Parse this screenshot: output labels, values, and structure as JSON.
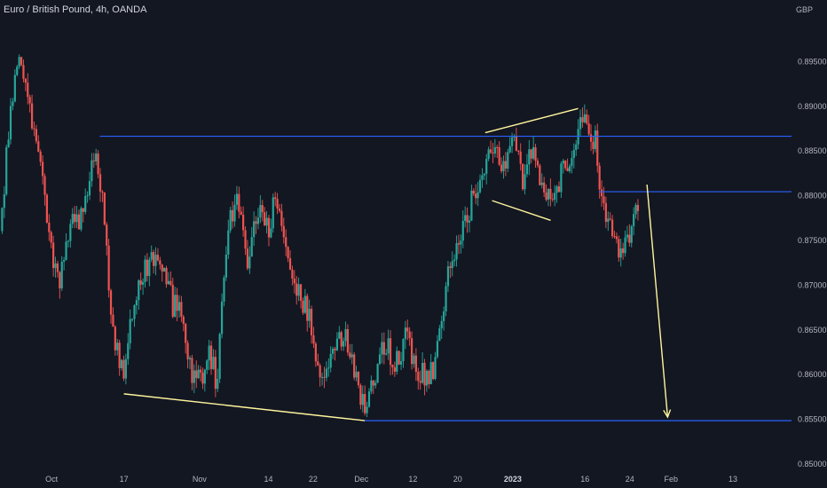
{
  "header": {
    "title": "Euro / British Pound, 4h, OANDA",
    "currency": "GBP"
  },
  "chart_data": {
    "type": "candlestick",
    "title": "Euro / British Pound, 4h, OANDA",
    "ylabel": "GBP",
    "ylim": [
      0.85,
      0.9
    ],
    "xlim": [
      0,
      230
    ],
    "y_ticks": [
      "0.89500",
      "0.89000",
      "0.88500",
      "0.88000",
      "0.87500",
      "0.87000",
      "0.86500",
      "0.86000",
      "0.85500",
      "0.85000"
    ],
    "x_ticks": [
      {
        "label": "Oct",
        "x": 15
      },
      {
        "label": "17",
        "x": 36
      },
      {
        "label": "Nov",
        "x": 58
      },
      {
        "label": "14",
        "x": 78
      },
      {
        "label": "22",
        "x": 91
      },
      {
        "label": "Dec",
        "x": 105
      },
      {
        "label": "12",
        "x": 120
      },
      {
        "label": "20",
        "x": 133
      },
      {
        "label": "2023",
        "x": 149
      },
      {
        "label": "16",
        "x": 170
      },
      {
        "label": "24",
        "x": 183
      },
      {
        "label": "Feb",
        "x": 195
      },
      {
        "label": "13",
        "x": 213
      }
    ],
    "grid": false,
    "colors": {
      "up": "#26a69a",
      "down": "#ef5350",
      "support": "#2962ff",
      "annotation": "#fff59d",
      "background": "#131722"
    },
    "anchors": [
      [
        0,
        0.876
      ],
      [
        3,
        0.889
      ],
      [
        6,
        0.896
      ],
      [
        9,
        0.888
      ],
      [
        12,
        0.882
      ],
      [
        15,
        0.874
      ],
      [
        17,
        0.8695
      ],
      [
        20,
        0.876
      ],
      [
        24,
        0.878
      ],
      [
        28,
        0.8855
      ],
      [
        30,
        0.878
      ],
      [
        33,
        0.864
      ],
      [
        36,
        0.8605
      ],
      [
        39,
        0.868
      ],
      [
        42,
        0.872
      ],
      [
        46,
        0.874
      ],
      [
        50,
        0.868
      ],
      [
        53,
        0.866
      ],
      [
        56,
        0.86
      ],
      [
        58,
        0.859
      ],
      [
        61,
        0.862
      ],
      [
        63,
        0.859
      ],
      [
        66,
        0.876
      ],
      [
        69,
        0.88
      ],
      [
        72,
        0.872
      ],
      [
        75,
        0.879
      ],
      [
        78,
        0.876
      ],
      [
        80,
        0.88
      ],
      [
        83,
        0.874
      ],
      [
        86,
        0.869
      ],
      [
        90,
        0.867
      ],
      [
        93,
        0.86
      ],
      [
        96,
        0.861
      ],
      [
        100,
        0.865
      ],
      [
        103,
        0.861
      ],
      [
        106,
        0.856
      ],
      [
        109,
        0.86
      ],
      [
        112,
        0.864
      ],
      [
        115,
        0.861
      ],
      [
        118,
        0.864
      ],
      [
        121,
        0.861
      ],
      [
        124,
        0.859
      ],
      [
        127,
        0.862
      ],
      [
        129,
        0.868
      ],
      [
        131,
        0.873
      ],
      [
        134,
        0.876
      ],
      [
        137,
        0.879
      ],
      [
        140,
        0.882
      ],
      [
        143,
        0.885
      ],
      [
        146,
        0.883
      ],
      [
        149,
        0.886
      ],
      [
        152,
        0.882
      ],
      [
        155,
        0.885
      ],
      [
        158,
        0.879
      ],
      [
        161,
        0.88
      ],
      [
        164,
        0.883
      ],
      [
        167,
        0.886
      ],
      [
        170,
        0.889
      ],
      [
        173,
        0.886
      ],
      [
        175,
        0.879
      ],
      [
        177,
        0.877
      ],
      [
        180,
        0.874
      ],
      [
        183,
        0.876
      ],
      [
        185,
        0.879
      ],
      [
        186,
        0.8805
      ]
    ],
    "annotations": {
      "resistance_line": {
        "level": 0.8866,
        "x_start": 29,
        "x_end": 230
      },
      "support_line": {
        "level": 0.8548,
        "x_start": 106,
        "x_end": 230
      },
      "recent_resistance": {
        "level": 0.8804,
        "x_start": 174,
        "x_end": 230
      },
      "falling_wedge_lower": [
        [
          36,
          0.8578
        ],
        [
          106,
          0.8548
        ]
      ],
      "flag_upper": [
        [
          141,
          0.887
        ],
        [
          168,
          0.8897
        ]
      ],
      "flag_lower": [
        [
          143,
          0.8794
        ],
        [
          160,
          0.8772
        ]
      ],
      "projection_arrow": {
        "from": [
          188,
          0.8812
        ],
        "to": [
          194,
          0.8552
        ]
      }
    }
  }
}
